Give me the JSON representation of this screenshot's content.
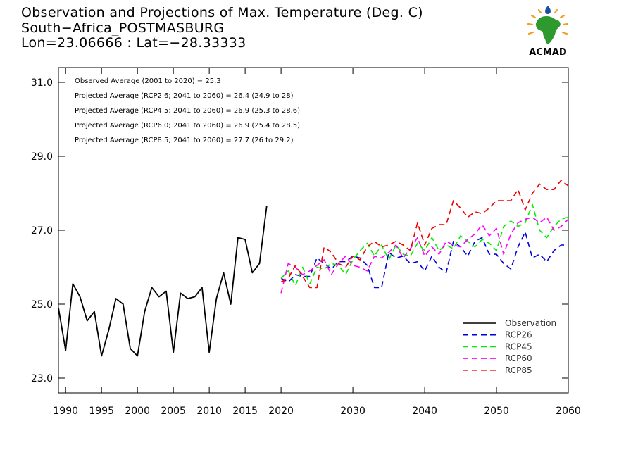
{
  "header": {
    "title_line1": "Observation and Projections of Max. Temperature (Deg. C)",
    "title_line2": "South−Africa_POSTMASBURG",
    "title_line3": "Lon=23.06666 : Lat=−28.33333"
  },
  "logo": {
    "text": "ACMAD",
    "colors": {
      "africa": "#2e9a2e",
      "text": "#1a4fa0",
      "rays": "#f0a020"
    }
  },
  "chart_data": {
    "type": "line",
    "title": "Observation and Projections of Max. Temperature (Deg. C)",
    "xlim": [
      1989,
      2060
    ],
    "ylim": [
      22.6,
      31.4
    ],
    "x_ticks": [
      1990,
      1995,
      2000,
      2005,
      2010,
      2015,
      2020,
      2030,
      2040,
      2050,
      2060
    ],
    "y_ticks": [
      23.0,
      25.0,
      27.0,
      29.0,
      31.0
    ],
    "y_tick_labels": [
      "23.0",
      "25.0",
      "27.0",
      "29.0",
      "31.0"
    ],
    "grid": false,
    "legend_position": "bottom-right",
    "annotations": [
      "Observed Average (2001 to 2020) = 25.3",
      "Projected Average (RCP2.6; 2041 to 2060) = 26.4 (24.9 to 28)",
      "Projected Average (RCP4.5; 2041 to 2060) = 26.9 (25.3 to 28.6)",
      "Projected Average (RCP6.0; 2041 to 2060) = 26.9 (25.4 to 28.5)",
      "Projected Average (RCP8.5; 2041 to 2060) = 27.7 (26 to 29.2)"
    ],
    "series": [
      {
        "name": "Observation",
        "color": "#000000",
        "dashed": false,
        "x": [
          1989,
          1990,
          1991,
          1992,
          1993,
          1994,
          1995,
          1996,
          1997,
          1998,
          1999,
          2000,
          2001,
          2002,
          2003,
          2004,
          2005,
          2006,
          2007,
          2008,
          2009,
          2010,
          2011,
          2012,
          2013,
          2014,
          2015,
          2016,
          2017,
          2018,
          2019
        ],
        "values": [
          24.9,
          23.75,
          25.55,
          25.2,
          24.55,
          24.8,
          23.6,
          24.3,
          25.15,
          25.0,
          23.8,
          23.6,
          24.8,
          25.45,
          25.2,
          25.35,
          23.7,
          25.3,
          25.15,
          25.2,
          25.45,
          23.7,
          25.15,
          25.85,
          25.0,
          26.8,
          26.75,
          25.85,
          26.1,
          27.65,
          null
        ]
      },
      {
        "name": "RCP26",
        "color": "#0000dd",
        "dashed": true,
        "x": [
          2020,
          2021,
          2022,
          2023,
          2024,
          2025,
          2026,
          2027,
          2028,
          2029,
          2030,
          2031,
          2032,
          2033,
          2034,
          2035,
          2036,
          2037,
          2038,
          2039,
          2040,
          2041,
          2042,
          2043,
          2044,
          2045,
          2046,
          2047,
          2048,
          2049,
          2050,
          2051,
          2052,
          2053,
          2054,
          2055,
          2056,
          2057,
          2058,
          2059,
          2060
        ],
        "values": [
          25.7,
          25.6,
          25.8,
          25.75,
          25.75,
          26.25,
          26.1,
          25.95,
          26.15,
          26.15,
          26.3,
          26.25,
          26.05,
          25.45,
          25.45,
          26.4,
          26.25,
          26.3,
          26.1,
          26.15,
          25.9,
          26.3,
          26.0,
          25.85,
          26.7,
          26.55,
          26.3,
          26.7,
          26.8,
          26.35,
          26.35,
          26.1,
          25.95,
          26.55,
          26.95,
          26.25,
          26.35,
          26.15,
          26.45,
          26.6,
          26.6
        ]
      },
      {
        "name": "RCP45",
        "color": "#00ee00",
        "dashed": true,
        "x": [
          2020,
          2021,
          2022,
          2023,
          2024,
          2025,
          2026,
          2027,
          2028,
          2029,
          2030,
          2031,
          2032,
          2033,
          2034,
          2035,
          2036,
          2037,
          2038,
          2039,
          2040,
          2041,
          2042,
          2043,
          2044,
          2045,
          2046,
          2047,
          2048,
          2049,
          2050,
          2051,
          2052,
          2053,
          2054,
          2055,
          2056,
          2057,
          2058,
          2059,
          2060
        ],
        "values": [
          25.7,
          25.9,
          25.5,
          26.0,
          25.55,
          26.0,
          25.95,
          26.1,
          26.05,
          25.8,
          26.2,
          26.45,
          26.65,
          26.3,
          26.6,
          26.2,
          26.6,
          26.35,
          26.3,
          26.65,
          26.45,
          26.8,
          26.45,
          26.6,
          26.5,
          26.85,
          26.7,
          26.55,
          26.75,
          26.65,
          26.45,
          27.1,
          27.25,
          27.1,
          27.2,
          27.7,
          27.0,
          26.8,
          27.1,
          27.3,
          27.35
        ]
      },
      {
        "name": "RCP60",
        "color": "#ff00ff",
        "dashed": true,
        "x": [
          2020,
          2021,
          2022,
          2023,
          2024,
          2025,
          2026,
          2027,
          2028,
          2029,
          2030,
          2031,
          2032,
          2033,
          2034,
          2035,
          2036,
          2037,
          2038,
          2039,
          2040,
          2041,
          2042,
          2043,
          2044,
          2045,
          2046,
          2047,
          2048,
          2049,
          2050,
          2051,
          2052,
          2053,
          2054,
          2055,
          2056,
          2057,
          2058,
          2059,
          2060
        ],
        "values": [
          25.3,
          26.1,
          26.0,
          25.8,
          25.9,
          26.05,
          26.2,
          25.8,
          26.1,
          26.3,
          26.05,
          26.0,
          25.9,
          26.3,
          26.25,
          26.4,
          26.6,
          26.25,
          26.5,
          26.8,
          26.3,
          26.55,
          26.35,
          26.7,
          26.6,
          26.55,
          26.75,
          26.9,
          27.15,
          26.85,
          27.05,
          26.35,
          26.9,
          27.2,
          27.3,
          27.35,
          27.2,
          27.35,
          27.0,
          27.1,
          27.3
        ]
      },
      {
        "name": "RCP85",
        "color": "#ee0000",
        "dashed": true,
        "x": [
          2020,
          2021,
          2022,
          2023,
          2024,
          2025,
          2026,
          2027,
          2028,
          2029,
          2030,
          2031,
          2032,
          2033,
          2034,
          2035,
          2036,
          2037,
          2038,
          2039,
          2040,
          2041,
          2042,
          2043,
          2044,
          2045,
          2046,
          2047,
          2048,
          2049,
          2050,
          2051,
          2052,
          2053,
          2054,
          2055,
          2056,
          2057,
          2058,
          2059,
          2060
        ],
        "values": [
          25.6,
          25.7,
          26.05,
          25.75,
          25.45,
          25.45,
          26.55,
          26.4,
          26.1,
          26.0,
          26.3,
          26.2,
          26.55,
          26.7,
          26.55,
          26.6,
          26.7,
          26.6,
          26.45,
          27.2,
          26.6,
          27.05,
          27.15,
          27.15,
          27.8,
          27.6,
          27.35,
          27.5,
          27.45,
          27.6,
          27.8,
          27.8,
          27.8,
          28.1,
          27.55,
          28.0,
          28.25,
          28.1,
          28.1,
          28.35,
          28.2
        ]
      }
    ]
  }
}
